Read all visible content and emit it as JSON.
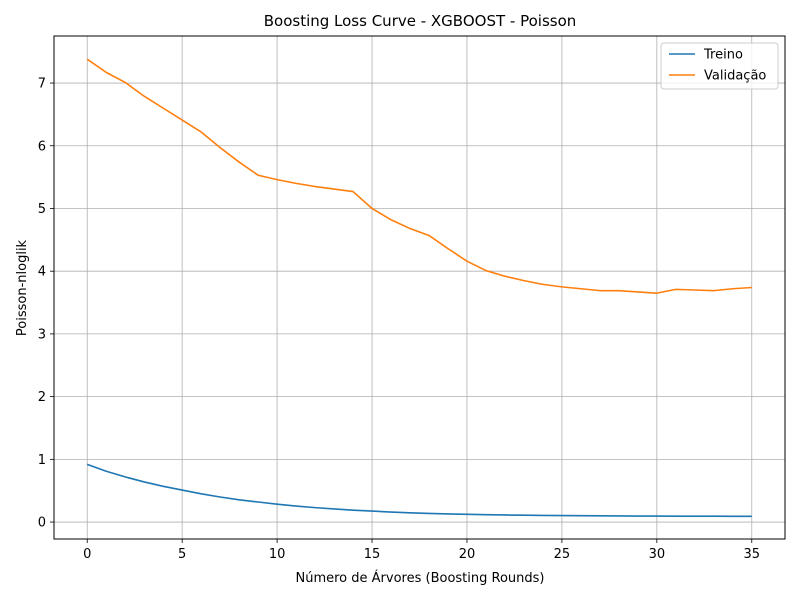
{
  "chart_data": {
    "type": "line",
    "title": "Boosting Loss Curve - XGBOOST - Poisson",
    "xlabel": "Número de Árvores (Boosting Rounds)",
    "ylabel": "Poisson-nloglik",
    "xlim": [
      -1.75,
      36.75
    ],
    "ylim": [
      -0.27,
      7.75
    ],
    "xticks": [
      0,
      5,
      10,
      15,
      20,
      25,
      30,
      35
    ],
    "yticks": [
      0,
      1,
      2,
      3,
      4,
      5,
      6,
      7
    ],
    "grid": true,
    "legend_position": "top-right",
    "x": [
      0,
      1,
      2,
      3,
      4,
      5,
      6,
      7,
      8,
      9,
      10,
      11,
      12,
      13,
      14,
      15,
      16,
      17,
      18,
      19,
      20,
      21,
      22,
      23,
      24,
      25,
      26,
      27,
      28,
      29,
      30,
      31,
      32,
      33,
      34,
      35
    ],
    "series": [
      {
        "name": "Treino",
        "color": "#1f77b4",
        "values": [
          0.92,
          0.81,
          0.72,
          0.64,
          0.57,
          0.51,
          0.45,
          0.4,
          0.355,
          0.32,
          0.285,
          0.255,
          0.23,
          0.21,
          0.19,
          0.175,
          0.16,
          0.148,
          0.138,
          0.13,
          0.123,
          0.118,
          0.113,
          0.109,
          0.106,
          0.103,
          0.101,
          0.099,
          0.097,
          0.096,
          0.095,
          0.094,
          0.093,
          0.093,
          0.092,
          0.092
        ]
      },
      {
        "name": "Validação",
        "color": "#ff7f0e",
        "values": [
          7.38,
          7.17,
          7.01,
          6.79,
          6.6,
          6.41,
          6.22,
          5.97,
          5.74,
          5.53,
          5.46,
          5.4,
          5.35,
          5.31,
          5.27,
          5.0,
          4.82,
          4.68,
          4.57,
          4.36,
          4.16,
          4.01,
          3.92,
          3.85,
          3.79,
          3.75,
          3.72,
          3.69,
          3.69,
          3.67,
          3.65,
          3.71,
          3.7,
          3.69,
          3.72,
          3.74
        ]
      }
    ]
  }
}
